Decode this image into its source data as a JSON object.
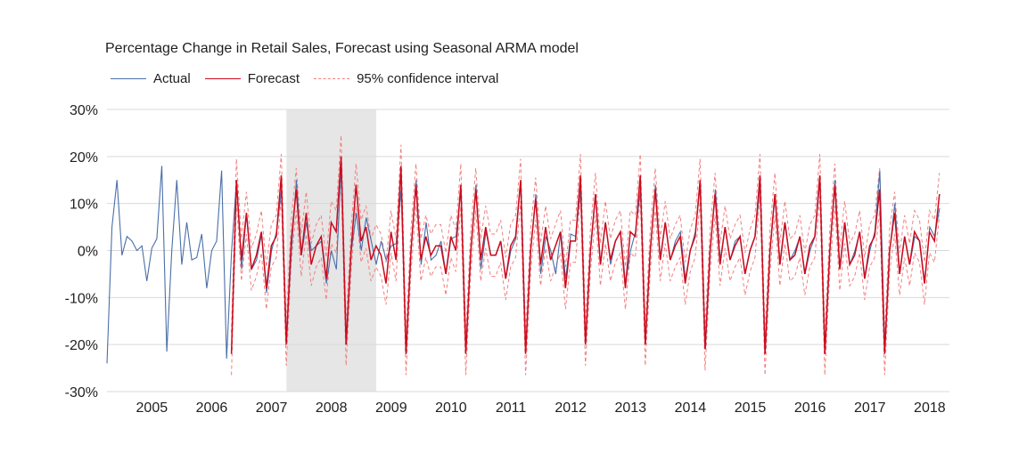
{
  "chart_data": {
    "type": "line",
    "title": "Percentage Change in Retail Sales, Forecast using Seasonal ARMA model",
    "xlabel": "",
    "ylabel": "",
    "ylim": [
      -0.3,
      0.3
    ],
    "yticks": [
      -0.3,
      -0.2,
      -0.1,
      0,
      0.1,
      0.2,
      0.3
    ],
    "ytick_labels": [
      "-30%",
      "-20%",
      "-10%",
      "0%",
      "10%",
      "20%",
      "30%"
    ],
    "xlim": [
      2004.75,
      2018.83
    ],
    "xtick_labels": [
      "2005",
      "2006",
      "2007",
      "2008",
      "2009",
      "2010",
      "2011",
      "2012",
      "2013",
      "2014",
      "2015",
      "2016",
      "2017",
      "2018"
    ],
    "grid": "horizontal",
    "legend_position": "top-left",
    "shaded_region": {
      "from": 2007.75,
      "to": 2009.25
    },
    "series": [
      {
        "name": "Actual",
        "color": "#4a6fa8",
        "style": "solid",
        "start": 2004.75,
        "step": 0.0833333,
        "values": [
          -0.24,
          0.05,
          0.15,
          -0.01,
          0.03,
          0.02,
          0.0,
          0.01,
          -0.065,
          0.005,
          0.025,
          0.18,
          -0.215,
          0.0,
          0.15,
          -0.03,
          0.06,
          -0.02,
          -0.015,
          0.035,
          -0.08,
          0.0,
          0.02,
          0.17,
          -0.23,
          0.0,
          0.15,
          -0.04,
          0.08,
          -0.04,
          -0.02,
          0.035,
          -0.09,
          0.0,
          0.04,
          0.13,
          -0.19,
          0.0,
          0.15,
          -0.01,
          0.06,
          0.0,
          0.01,
          0.02,
          -0.07,
          0.0,
          -0.04,
          0.19,
          -0.2,
          0.0,
          0.08,
          0.0,
          0.07,
          0.02,
          -0.03,
          0.02,
          -0.02,
          0.01,
          0.015,
          0.13,
          -0.22,
          0.0,
          0.15,
          -0.03,
          0.06,
          -0.02,
          -0.01,
          0.02,
          -0.05,
          0.025,
          0.03,
          0.13,
          -0.21,
          0.0,
          0.14,
          -0.04,
          0.04,
          -0.01,
          -0.01,
          0.02,
          -0.06,
          0.0,
          0.025,
          0.15,
          -0.21,
          0.0,
          0.12,
          -0.05,
          0.03,
          0.0,
          -0.05,
          0.04,
          -0.06,
          0.035,
          0.03,
          0.13,
          -0.2,
          0.0,
          0.12,
          -0.03,
          0.06,
          -0.03,
          0.02,
          0.04,
          -0.07,
          0.0,
          0.04,
          0.13,
          -0.2,
          0.0,
          0.14,
          -0.02,
          0.06,
          -0.02,
          0.02,
          0.04,
          -0.06,
          0.0,
          0.04,
          0.14,
          -0.21,
          0.0,
          0.13,
          -0.02,
          0.05,
          -0.02,
          0.02,
          0.03,
          -0.05,
          0.0,
          0.03,
          0.14,
          -0.22,
          0.0,
          0.12,
          -0.03,
          0.06,
          -0.02,
          0.0,
          0.03,
          -0.05,
          0.0,
          0.03,
          0.15,
          -0.22,
          0.0,
          0.15,
          -0.04,
          0.06,
          -0.03,
          0.0,
          0.04,
          -0.06,
          0.0,
          0.04,
          0.17,
          -0.21,
          0.0,
          0.1,
          -0.05,
          0.03,
          -0.03,
          0.03,
          0.02,
          -0.07,
          0.05,
          0.03,
          0.09
        ]
      },
      {
        "name": "Forecast",
        "color": "#cc0a1c",
        "style": "solid",
        "start": 2006.83,
        "step": 0.0833333,
        "values": [
          -0.22,
          0.15,
          -0.02,
          0.08,
          -0.04,
          -0.01,
          0.04,
          -0.08,
          0.01,
          0.03,
          0.16,
          -0.2,
          0.02,
          0.13,
          -0.01,
          0.08,
          -0.03,
          0.01,
          0.03,
          -0.06,
          0.06,
          0.04,
          0.2,
          -0.2,
          0.0,
          0.14,
          0.02,
          0.05,
          -0.02,
          0.01,
          -0.01,
          -0.07,
          0.04,
          -0.02,
          0.18,
          -0.22,
          0.0,
          0.14,
          -0.02,
          0.03,
          -0.01,
          0.01,
          0.01,
          -0.05,
          0.03,
          0.0,
          0.14,
          -0.22,
          0.0,
          0.13,
          -0.02,
          0.05,
          -0.01,
          -0.01,
          0.02,
          -0.06,
          0.01,
          0.03,
          0.15,
          -0.22,
          0.0,
          0.11,
          -0.03,
          0.05,
          -0.02,
          0.01,
          0.04,
          -0.08,
          0.02,
          0.02,
          0.16,
          -0.2,
          0.0,
          0.12,
          -0.03,
          0.06,
          -0.02,
          0.02,
          0.04,
          -0.08,
          0.04,
          0.03,
          0.16,
          -0.2,
          0.0,
          0.13,
          -0.02,
          0.06,
          -0.02,
          0.01,
          0.03,
          -0.07,
          0.0,
          0.03,
          0.15,
          -0.21,
          0.0,
          0.12,
          -0.03,
          0.05,
          -0.02,
          0.01,
          0.03,
          -0.05,
          0.0,
          0.03,
          0.16,
          -0.22,
          0.0,
          0.12,
          -0.03,
          0.06,
          -0.02,
          -0.01,
          0.03,
          -0.05,
          0.01,
          0.03,
          0.16,
          -0.22,
          0.0,
          0.14,
          -0.04,
          0.06,
          -0.03,
          -0.01,
          0.04,
          -0.06,
          0.01,
          0.03,
          0.13,
          -0.22,
          0.0,
          0.08,
          -0.05,
          0.03,
          -0.03,
          0.04,
          0.02,
          -0.07,
          0.04,
          0.02,
          0.12
        ]
      },
      {
        "name": "95% confidence interval",
        "color": "#f08080",
        "style": "dashed",
        "start": 2006.83,
        "step": 0.0833333,
        "spread": 0.045
      }
    ]
  }
}
